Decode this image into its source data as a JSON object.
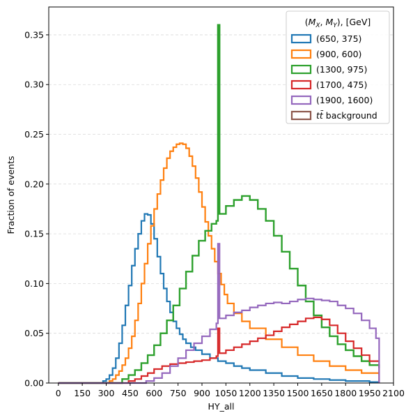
{
  "chart_data": {
    "type": "step-histogram",
    "xlabel": "HY_all",
    "ylabel": "Fraction of events",
    "xlim": [
      -60,
      2100
    ],
    "ylim": [
      0,
      0.378
    ],
    "xticks": [
      0,
      150,
      300,
      450,
      600,
      750,
      900,
      1050,
      1200,
      1350,
      1500,
      1650,
      1800,
      1950,
      2100
    ],
    "xtick_labels": [
      "0",
      "150",
      "300",
      "450",
      "600",
      "750",
      "900",
      "1050",
      "1200",
      "1350",
      "1500",
      "1650",
      "1800",
      "1950",
      "2100"
    ],
    "yticks": [
      0.0,
      0.05,
      0.1,
      0.15,
      0.2,
      0.25,
      0.3,
      0.35
    ],
    "ytick_labels": [
      "0.00",
      "0.05",
      "0.10",
      "0.15",
      "0.20",
      "0.25",
      "0.30",
      "0.35"
    ],
    "grid": "y-dashed",
    "legend": {
      "title": "(M_X, M_Y), [GeV]",
      "title_parts": [
        "(",
        "M",
        "X",
        ", ",
        "M",
        "Y",
        "), [GeV]"
      ],
      "placement": "top-right"
    },
    "series": [
      {
        "name": "(650, 375)",
        "color": "#1f77b4",
        "points": [
          [
            0,
            0
          ],
          [
            250,
            0
          ],
          [
            280,
            0.002
          ],
          [
            300,
            0.004
          ],
          [
            320,
            0.008
          ],
          [
            340,
            0.015
          ],
          [
            360,
            0.025
          ],
          [
            380,
            0.04
          ],
          [
            400,
            0.058
          ],
          [
            420,
            0.078
          ],
          [
            440,
            0.098
          ],
          [
            460,
            0.118
          ],
          [
            480,
            0.135
          ],
          [
            500,
            0.15
          ],
          [
            520,
            0.163
          ],
          [
            540,
            0.17
          ],
          [
            560,
            0.169
          ],
          [
            580,
            0.16
          ],
          [
            600,
            0.145
          ],
          [
            620,
            0.127
          ],
          [
            640,
            0.11
          ],
          [
            660,
            0.095
          ],
          [
            680,
            0.082
          ],
          [
            700,
            0.071
          ],
          [
            720,
            0.062
          ],
          [
            740,
            0.055
          ],
          [
            760,
            0.049
          ],
          [
            780,
            0.044
          ],
          [
            800,
            0.04
          ],
          [
            830,
            0.036
          ],
          [
            860,
            0.033
          ],
          [
            900,
            0.029
          ],
          [
            950,
            0.025
          ],
          [
            1000,
            0.022
          ],
          [
            1050,
            0.02
          ],
          [
            1100,
            0.017
          ],
          [
            1150,
            0.015
          ],
          [
            1200,
            0.013
          ],
          [
            1300,
            0.01
          ],
          [
            1400,
            0.007
          ],
          [
            1500,
            0.005
          ],
          [
            1600,
            0.004
          ],
          [
            1700,
            0.003
          ],
          [
            1800,
            0.002
          ],
          [
            1950,
            0.001
          ],
          [
            2010,
            0.001
          ]
        ]
      },
      {
        "name": "(900, 600)",
        "color": "#ff7f0e",
        "points": [
          [
            0,
            0
          ],
          [
            300,
            0
          ],
          [
            320,
            0.002
          ],
          [
            340,
            0.004
          ],
          [
            360,
            0.008
          ],
          [
            380,
            0.012
          ],
          [
            400,
            0.018
          ],
          [
            420,
            0.025
          ],
          [
            440,
            0.035
          ],
          [
            460,
            0.047
          ],
          [
            480,
            0.063
          ],
          [
            500,
            0.08
          ],
          [
            520,
            0.1
          ],
          [
            540,
            0.12
          ],
          [
            560,
            0.14
          ],
          [
            580,
            0.158
          ],
          [
            600,
            0.175
          ],
          [
            620,
            0.19
          ],
          [
            640,
            0.204
          ],
          [
            660,
            0.216
          ],
          [
            680,
            0.226
          ],
          [
            700,
            0.233
          ],
          [
            720,
            0.237
          ],
          [
            740,
            0.24
          ],
          [
            760,
            0.241
          ],
          [
            780,
            0.24
          ],
          [
            800,
            0.236
          ],
          [
            820,
            0.228
          ],
          [
            840,
            0.218
          ],
          [
            860,
            0.206
          ],
          [
            880,
            0.192
          ],
          [
            900,
            0.177
          ],
          [
            920,
            0.162
          ],
          [
            940,
            0.148
          ],
          [
            960,
            0.135
          ],
          [
            980,
            0.122
          ],
          [
            1000,
            0.11
          ],
          [
            1020,
            0.099
          ],
          [
            1040,
            0.089
          ],
          [
            1060,
            0.08
          ],
          [
            1100,
            0.07
          ],
          [
            1150,
            0.062
          ],
          [
            1200,
            0.055
          ],
          [
            1300,
            0.044
          ],
          [
            1400,
            0.036
          ],
          [
            1500,
            0.028
          ],
          [
            1600,
            0.022
          ],
          [
            1700,
            0.017
          ],
          [
            1800,
            0.013
          ],
          [
            1900,
            0.01
          ],
          [
            2010,
            0.008
          ]
        ]
      },
      {
        "name": "(1300, 975)",
        "color": "#2ca02c",
        "points": [
          [
            0,
            0
          ],
          [
            380,
            0
          ],
          [
            400,
            0.004
          ],
          [
            440,
            0.008
          ],
          [
            480,
            0.013
          ],
          [
            520,
            0.02
          ],
          [
            560,
            0.028
          ],
          [
            600,
            0.038
          ],
          [
            640,
            0.05
          ],
          [
            680,
            0.063
          ],
          [
            720,
            0.078
          ],
          [
            760,
            0.095
          ],
          [
            800,
            0.112
          ],
          [
            840,
            0.128
          ],
          [
            880,
            0.143
          ],
          [
            920,
            0.153
          ],
          [
            960,
            0.16
          ],
          [
            990,
            0.163
          ],
          [
            1000,
            0.36
          ],
          [
            1010,
            0.17
          ],
          [
            1050,
            0.178
          ],
          [
            1100,
            0.184
          ],
          [
            1150,
            0.188
          ],
          [
            1200,
            0.184
          ],
          [
            1250,
            0.175
          ],
          [
            1300,
            0.163
          ],
          [
            1350,
            0.148
          ],
          [
            1400,
            0.132
          ],
          [
            1450,
            0.115
          ],
          [
            1500,
            0.098
          ],
          [
            1550,
            0.082
          ],
          [
            1600,
            0.068
          ],
          [
            1650,
            0.056
          ],
          [
            1700,
            0.047
          ],
          [
            1750,
            0.039
          ],
          [
            1800,
            0.033
          ],
          [
            1850,
            0.027
          ],
          [
            1900,
            0.022
          ],
          [
            1950,
            0.018
          ],
          [
            2010,
            0.015
          ]
        ]
      },
      {
        "name": "(1700, 475)",
        "color": "#d62728",
        "points": [
          [
            0,
            0
          ],
          [
            420,
            0
          ],
          [
            440,
            0.002
          ],
          [
            480,
            0.004
          ],
          [
            520,
            0.007
          ],
          [
            560,
            0.01
          ],
          [
            600,
            0.014
          ],
          [
            650,
            0.017
          ],
          [
            700,
            0.019
          ],
          [
            750,
            0.02
          ],
          [
            800,
            0.021
          ],
          [
            850,
            0.022
          ],
          [
            900,
            0.023
          ],
          [
            950,
            0.025
          ],
          [
            990,
            0.027
          ],
          [
            1000,
            0.055
          ],
          [
            1010,
            0.03
          ],
          [
            1050,
            0.033
          ],
          [
            1100,
            0.036
          ],
          [
            1150,
            0.039
          ],
          [
            1200,
            0.042
          ],
          [
            1250,
            0.045
          ],
          [
            1300,
            0.048
          ],
          [
            1350,
            0.052
          ],
          [
            1400,
            0.056
          ],
          [
            1450,
            0.059
          ],
          [
            1500,
            0.062
          ],
          [
            1550,
            0.065
          ],
          [
            1600,
            0.066
          ],
          [
            1650,
            0.064
          ],
          [
            1700,
            0.058
          ],
          [
            1750,
            0.05
          ],
          [
            1800,
            0.042
          ],
          [
            1850,
            0.035
          ],
          [
            1900,
            0.028
          ],
          [
            1950,
            0.022
          ],
          [
            2010,
            0.018
          ],
          [
            2010,
            0
          ]
        ]
      },
      {
        "name": "(1900, 1600)",
        "color": "#9467bd",
        "points": [
          [
            0,
            0
          ],
          [
            500,
            0
          ],
          [
            550,
            0.002
          ],
          [
            600,
            0.005
          ],
          [
            650,
            0.01
          ],
          [
            700,
            0.017
          ],
          [
            750,
            0.025
          ],
          [
            800,
            0.033
          ],
          [
            850,
            0.04
          ],
          [
            900,
            0.047
          ],
          [
            950,
            0.054
          ],
          [
            990,
            0.06
          ],
          [
            1000,
            0.14
          ],
          [
            1010,
            0.065
          ],
          [
            1050,
            0.068
          ],
          [
            1100,
            0.071
          ],
          [
            1150,
            0.073
          ],
          [
            1200,
            0.076
          ],
          [
            1250,
            0.078
          ],
          [
            1300,
            0.08
          ],
          [
            1350,
            0.081
          ],
          [
            1400,
            0.08
          ],
          [
            1450,
            0.082
          ],
          [
            1500,
            0.084
          ],
          [
            1550,
            0.085
          ],
          [
            1600,
            0.084
          ],
          [
            1650,
            0.083
          ],
          [
            1700,
            0.082
          ],
          [
            1750,
            0.078
          ],
          [
            1800,
            0.075
          ],
          [
            1850,
            0.07
          ],
          [
            1900,
            0.063
          ],
          [
            1950,
            0.055
          ],
          [
            1990,
            0.045
          ],
          [
            2010,
            0.04
          ],
          [
            2010,
            0
          ]
        ]
      },
      {
        "name": "$t\\bar{t}$ background",
        "color": "#8c564b",
        "points": []
      }
    ],
    "legend_labels": [
      "(650, 375)",
      "(900, 600)",
      "(1300, 975)",
      "(1700, 475)",
      "(1900, 1600)",
      "background"
    ],
    "legend_math_prefix": "tt̄"
  }
}
